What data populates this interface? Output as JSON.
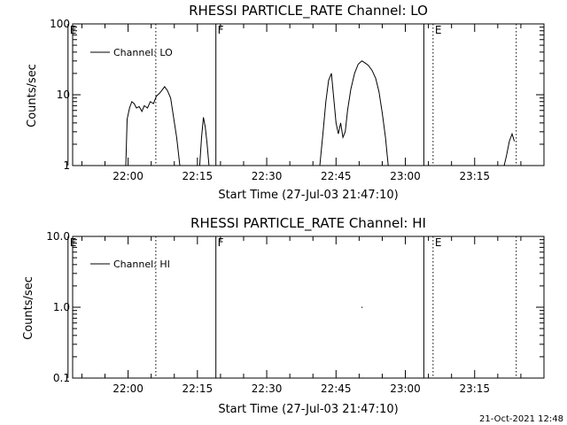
{
  "chart_data": [
    {
      "type": "line",
      "title": "RHESSI PARTICLE_RATE Channel: LO",
      "xlabel": "Start Time (27-Jul-03 21:47:10)",
      "ylabel": "Counts/sec",
      "y_scale": "log",
      "ylim": [
        1,
        100
      ],
      "y_ticks": [
        {
          "value": 1,
          "label": "1"
        },
        {
          "value": 10,
          "label": "10"
        },
        {
          "value": 100,
          "label": "100"
        }
      ],
      "x_range_minutes": [
        21.8,
        23.5
      ],
      "x_ticks": [
        {
          "t": "22:00",
          "label": "22:00"
        },
        {
          "t": "22:15",
          "label": "22:15"
        },
        {
          "t": "22:30",
          "label": "22:30"
        },
        {
          "t": "22:45",
          "label": "22:45"
        },
        {
          "t": "23:00",
          "label": "23:00"
        },
        {
          "t": "23:15",
          "label": "23:15"
        }
      ],
      "legend": {
        "label": "Channel: LO",
        "position": "top-left"
      },
      "markers": [
        {
          "t": "21:47",
          "style": "solid",
          "label": "E"
        },
        {
          "t": "22:06",
          "style": "dotted",
          "label": ""
        },
        {
          "t": "22:19",
          "style": "solid",
          "label": "F"
        },
        {
          "t": "23:04",
          "style": "solid",
          "label": ""
        },
        {
          "t": "23:06",
          "style": "dotted",
          "label": "E"
        },
        {
          "t": "23:24",
          "style": "dotted",
          "label": ""
        }
      ],
      "series": [
        {
          "values": [
            {
              "t": "21:59.5",
              "y": 1.0
            },
            {
              "t": "21:59.8",
              "y": 4.5
            },
            {
              "t": "22:00.3",
              "y": 6.5
            },
            {
              "t": "22:00.8",
              "y": 8.0
            },
            {
              "t": "22:01.3",
              "y": 7.5
            },
            {
              "t": "22:01.8",
              "y": 6.5
            },
            {
              "t": "22:02.4",
              "y": 6.8
            },
            {
              "t": "22:03.0",
              "y": 5.8
            },
            {
              "t": "22:03.5",
              "y": 7.0
            },
            {
              "t": "22:04.2",
              "y": 6.5
            },
            {
              "t": "22:04.8",
              "y": 8.0
            },
            {
              "t": "22:05.5",
              "y": 7.5
            },
            {
              "t": "22:06.1",
              "y": 9.5
            },
            {
              "t": "22:06.8",
              "y": 10.5
            },
            {
              "t": "22:07.3",
              "y": 11.5
            },
            {
              "t": "22:07.9",
              "y": 13.0
            },
            {
              "t": "22:08.5",
              "y": 11.5
            },
            {
              "t": "22:09.2",
              "y": 9.0
            },
            {
              "t": "22:09.8",
              "y": 5.0
            },
            {
              "t": "22:10.5",
              "y": 2.5
            },
            {
              "t": "22:11.2",
              "y": 1.0
            }
          ]
        },
        {
          "values": [
            {
              "t": "22:15.5",
              "y": 1.0
            },
            {
              "t": "22:15.9",
              "y": 2.5
            },
            {
              "t": "22:16.3",
              "y": 4.8
            },
            {
              "t": "22:16.7",
              "y": 3.5
            },
            {
              "t": "22:17.1",
              "y": 2.0
            },
            {
              "t": "22:17.5",
              "y": 1.0
            }
          ]
        },
        {
          "values": [
            {
              "t": "22:41.5",
              "y": 1.0
            },
            {
              "t": "22:42.2",
              "y": 3.0
            },
            {
              "t": "22:42.8",
              "y": 8.0
            },
            {
              "t": "22:43.4",
              "y": 16.0
            },
            {
              "t": "22:44.0",
              "y": 20.0
            },
            {
              "t": "22:44.5",
              "y": 9.0
            },
            {
              "t": "22:45.0",
              "y": 4.0
            },
            {
              "t": "22:45.5",
              "y": 2.8
            },
            {
              "t": "22:46.0",
              "y": 4.0
            },
            {
              "t": "22:46.5",
              "y": 2.5
            },
            {
              "t": "22:47.0",
              "y": 3.0
            },
            {
              "t": "22:47.5",
              "y": 6.0
            },
            {
              "t": "22:48.2",
              "y": 12.0
            },
            {
              "t": "22:49.0",
              "y": 20.0
            },
            {
              "t": "22:49.8",
              "y": 27.0
            },
            {
              "t": "22:50.6",
              "y": 30.0
            },
            {
              "t": "22:51.3",
              "y": 28.0
            },
            {
              "t": "22:52.0",
              "y": 26.0
            },
            {
              "t": "22:52.8",
              "y": 22.0
            },
            {
              "t": "22:53.6",
              "y": 17.0
            },
            {
              "t": "22:54.3",
              "y": 11.0
            },
            {
              "t": "22:55.0",
              "y": 5.5
            },
            {
              "t": "22:55.7",
              "y": 2.5
            },
            {
              "t": "22:56.3",
              "y": 1.0
            }
          ]
        },
        {
          "values": [
            {
              "t": "23:21.4",
              "y": 1.0
            },
            {
              "t": "23:21.9",
              "y": 1.4
            },
            {
              "t": "23:22.5",
              "y": 2.2
            },
            {
              "t": "23:23.1",
              "y": 2.8
            },
            {
              "t": "23:23.6",
              "y": 2.2
            }
          ]
        }
      ]
    },
    {
      "type": "line",
      "title": "RHESSI PARTICLE_RATE Channel: HI",
      "xlabel": "Start Time (27-Jul-03 21:47:10)",
      "ylabel": "Counts/sec",
      "y_scale": "log",
      "ylim": [
        0.1,
        10
      ],
      "y_ticks": [
        {
          "value": 0.1,
          "label": "0.1"
        },
        {
          "value": 1,
          "label": "1.0"
        },
        {
          "value": 10,
          "label": "10.0"
        }
      ],
      "x_range_minutes": [
        21.8,
        23.5
      ],
      "x_ticks": [
        {
          "t": "22:00",
          "label": "22:00"
        },
        {
          "t": "22:15",
          "label": "22:15"
        },
        {
          "t": "22:30",
          "label": "22:30"
        },
        {
          "t": "22:45",
          "label": "22:45"
        },
        {
          "t": "23:00",
          "label": "23:00"
        },
        {
          "t": "23:15",
          "label": "23:15"
        }
      ],
      "legend": {
        "label": "Channel: HI",
        "position": "top-left"
      },
      "markers": [
        {
          "t": "21:47",
          "style": "solid",
          "label": "E"
        },
        {
          "t": "22:06",
          "style": "dotted",
          "label": ""
        },
        {
          "t": "22:19",
          "style": "solid",
          "label": "F"
        },
        {
          "t": "23:04",
          "style": "solid",
          "label": ""
        },
        {
          "t": "23:06",
          "style": "dotted",
          "label": "E"
        },
        {
          "t": "23:24",
          "style": "dotted",
          "label": ""
        }
      ],
      "series": [
        {
          "values": [
            {
              "t": "22:50.5",
              "y": 1.0
            }
          ]
        }
      ]
    }
  ],
  "footer": {
    "timestamp": "21-Oct-2021 12:48"
  }
}
